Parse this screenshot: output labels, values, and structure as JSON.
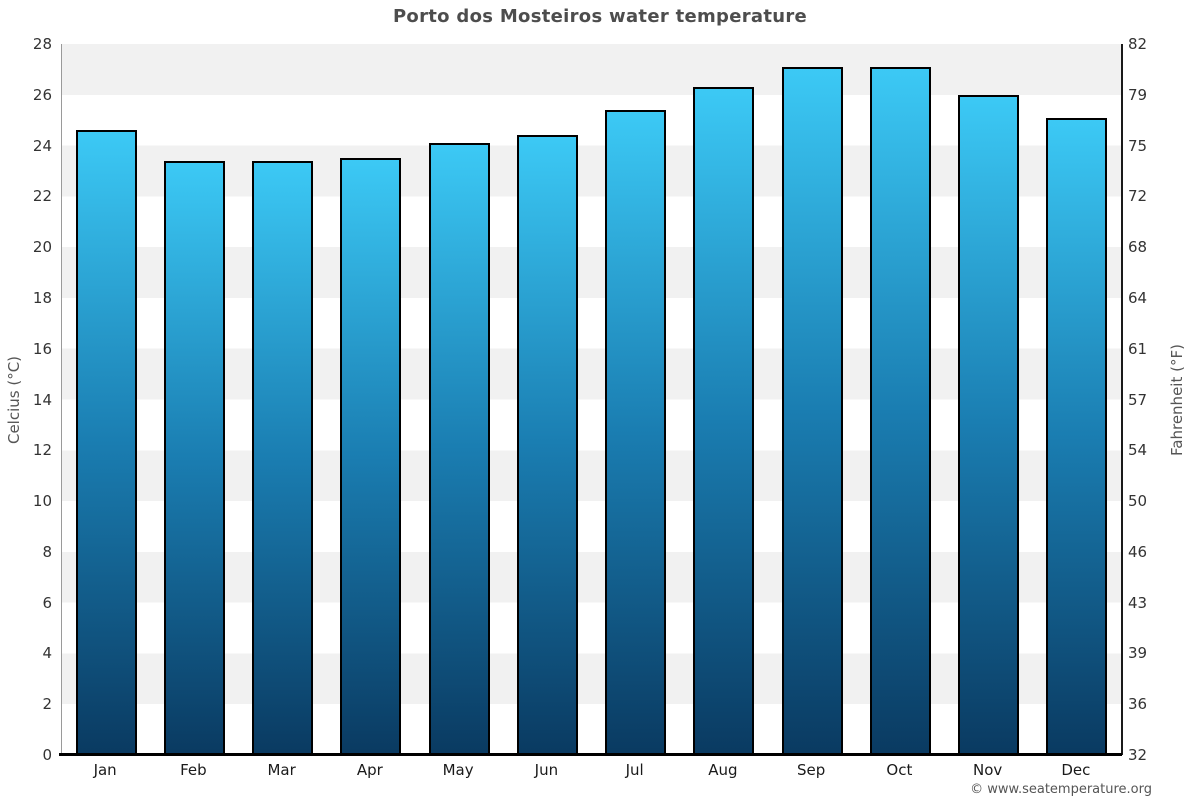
{
  "chart_data": {
    "type": "bar",
    "title": "Porto dos Mosteiros water temperature",
    "categories": [
      "Jan",
      "Feb",
      "Mar",
      "Apr",
      "May",
      "Jun",
      "Jul",
      "Aug",
      "Sep",
      "Oct",
      "Nov",
      "Dec"
    ],
    "values": [
      24.6,
      23.4,
      23.4,
      23.5,
      24.1,
      24.4,
      25.4,
      26.3,
      27.1,
      27.1,
      26.0,
      25.1
    ],
    "series_name": "Water temperature (°C)",
    "xlabel": "",
    "ylabel_left": "Celcius (°C)",
    "ylabel_right": "Fahrenheit (°F)",
    "ylim": [
      0,
      28
    ],
    "yticks_celsius": [
      0,
      2,
      4,
      6,
      8,
      10,
      12,
      14,
      16,
      18,
      20,
      22,
      24,
      26,
      28
    ],
    "yticks_fahrenheit": [
      32,
      36,
      39,
      43,
      46,
      50,
      54,
      57,
      61,
      64,
      68,
      72,
      75,
      79,
      82
    ],
    "grid": "alternating horizontal bands every 2°C",
    "legend": "none",
    "colors": {
      "bar_gradient_top": "#3cc9f5",
      "bar_gradient_mid": "#1a7db1",
      "bar_gradient_bottom": "#0a3a61",
      "bar_border": "#000000",
      "band_gray": "#f1f1f1",
      "band_white": "#ffffff",
      "title_text": "#4d4d4d",
      "tick_text": "#333333",
      "axis_line": "#000000"
    }
  },
  "watermark": "© www.seatemperature.org"
}
